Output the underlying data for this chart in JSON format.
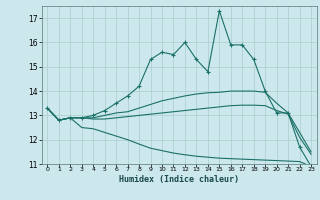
{
  "xlabel": "Humidex (Indice chaleur)",
  "ylabel": "",
  "xlim": [
    -0.5,
    23.5
  ],
  "ylim": [
    11,
    17.5
  ],
  "yticks": [
    11,
    12,
    13,
    14,
    15,
    16,
    17
  ],
  "xticks": [
    0,
    1,
    2,
    3,
    4,
    5,
    6,
    7,
    8,
    9,
    10,
    11,
    12,
    13,
    14,
    15,
    16,
    17,
    18,
    19,
    20,
    21,
    22,
    23
  ],
  "bg_color": "#cce8ec",
  "grid_color": "#aacccc",
  "line_color": "#1a7068",
  "lines": [
    {
      "x": [
        0,
        1,
        2,
        3,
        4,
        5,
        6,
        7,
        8,
        9,
        10,
        11,
        12,
        13,
        14,
        15,
        16,
        17,
        18,
        19,
        20,
        21,
        22,
        23
      ],
      "y": [
        13.3,
        12.8,
        12.9,
        12.9,
        13.0,
        13.2,
        13.5,
        13.8,
        14.2,
        15.3,
        15.6,
        15.5,
        16.0,
        15.3,
        14.8,
        17.3,
        15.9,
        15.9,
        15.3,
        14.0,
        13.1,
        13.1,
        11.7,
        10.9
      ],
      "marker": true
    },
    {
      "x": [
        0,
        1,
        2,
        3,
        4,
        5,
        6,
        7,
        8,
        9,
        10,
        11,
        12,
        13,
        14,
        15,
        16,
        17,
        18,
        19,
        20,
        21,
        22,
        23
      ],
      "y": [
        13.3,
        12.8,
        12.9,
        12.9,
        12.9,
        13.0,
        13.1,
        13.15,
        13.3,
        13.45,
        13.6,
        13.7,
        13.8,
        13.88,
        13.93,
        13.95,
        14.0,
        14.0,
        14.0,
        13.95,
        13.5,
        13.1,
        12.3,
        11.5
      ],
      "marker": false
    },
    {
      "x": [
        0,
        1,
        2,
        3,
        4,
        5,
        6,
        7,
        8,
        9,
        10,
        11,
        12,
        13,
        14,
        15,
        16,
        17,
        18,
        19,
        20,
        21,
        22,
        23
      ],
      "y": [
        13.3,
        12.8,
        12.9,
        12.9,
        12.85,
        12.85,
        12.9,
        12.95,
        13.0,
        13.05,
        13.1,
        13.15,
        13.2,
        13.25,
        13.3,
        13.35,
        13.4,
        13.42,
        13.42,
        13.4,
        13.2,
        13.05,
        12.1,
        11.4
      ],
      "marker": false
    },
    {
      "x": [
        0,
        1,
        2,
        3,
        4,
        5,
        6,
        7,
        8,
        9,
        10,
        11,
        12,
        13,
        14,
        15,
        16,
        17,
        18,
        19,
        20,
        21,
        22,
        23
      ],
      "y": [
        13.3,
        12.8,
        12.9,
        12.5,
        12.45,
        12.3,
        12.15,
        12.0,
        11.82,
        11.65,
        11.55,
        11.45,
        11.38,
        11.32,
        11.28,
        11.24,
        11.22,
        11.2,
        11.18,
        11.16,
        11.14,
        11.12,
        11.1,
        10.9
      ],
      "marker": false
    }
  ]
}
